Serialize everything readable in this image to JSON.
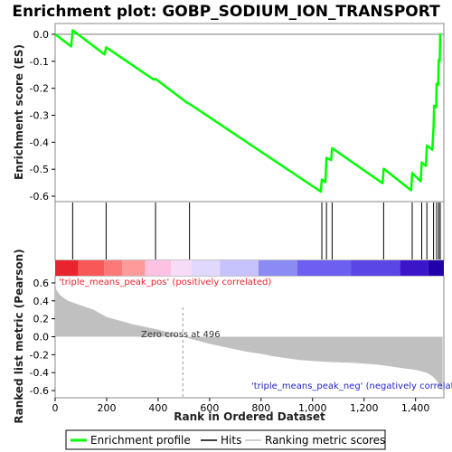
{
  "chart_data": {
    "type": "line",
    "title": "Enrichment plot: GOBP_SODIUM_ION_TRANSPORT",
    "x_label": "Rank in Ordered Dataset",
    "x_ticks": [
      "0",
      "200",
      "400",
      "600",
      "800",
      "1,000",
      "1,200",
      "1,400"
    ],
    "x_range": [
      0,
      1510
    ],
    "panels": {
      "enrichment": {
        "ylabel": "Enrichment score (ES)",
        "ylim": [
          -0.62,
          0.04
        ],
        "y_ticks": [
          "0.0",
          "-0.1",
          "-0.2",
          "-0.3",
          "-0.4",
          "-0.5",
          "-0.6"
        ],
        "series_name": "Enrichment profile",
        "color": "#00ff00",
        "points": [
          [
            0,
            0.0
          ],
          [
            62,
            -0.045
          ],
          [
            68,
            0.015
          ],
          [
            192,
            -0.075
          ],
          [
            198,
            -0.048
          ],
          [
            383,
            -0.168
          ],
          [
            390,
            -0.165
          ],
          [
            512,
            -0.253
          ],
          [
            522,
            -0.258
          ],
          [
            1032,
            -0.583
          ],
          [
            1036,
            -0.538
          ],
          [
            1050,
            -0.548
          ],
          [
            1054,
            -0.458
          ],
          [
            1072,
            -0.466
          ],
          [
            1076,
            -0.422
          ],
          [
            1272,
            -0.552
          ],
          [
            1276,
            -0.498
          ],
          [
            1383,
            -0.578
          ],
          [
            1387,
            -0.514
          ],
          [
            1420,
            -0.545
          ],
          [
            1424,
            -0.475
          ],
          [
            1440,
            -0.488
          ],
          [
            1444,
            -0.412
          ],
          [
            1465,
            -0.428
          ],
          [
            1470,
            -0.345
          ],
          [
            1472,
            -0.265
          ],
          [
            1480,
            -0.27
          ],
          [
            1482,
            -0.183
          ],
          [
            1488,
            -0.188
          ],
          [
            1490,
            -0.095
          ],
          [
            1494,
            -0.1
          ],
          [
            1496,
            0.003
          ]
        ]
      },
      "hits": {
        "label": "Hits",
        "positions": [
          68,
          198,
          390,
          522,
          1036,
          1054,
          1076,
          1276,
          1387,
          1424,
          1444,
          1470,
          1482,
          1490,
          1496
        ]
      },
      "heatmap": {
        "segments": [
          {
            "start": 0,
            "end": 90,
            "color": "#e8242e"
          },
          {
            "start": 90,
            "end": 190,
            "color": "#f95858"
          },
          {
            "start": 190,
            "end": 260,
            "color": "#fd7878"
          },
          {
            "start": 260,
            "end": 350,
            "color": "#fd9a9a"
          },
          {
            "start": 350,
            "end": 450,
            "color": "#fdc1e2"
          },
          {
            "start": 450,
            "end": 530,
            "color": "#f6dcf6"
          },
          {
            "start": 530,
            "end": 640,
            "color": "#e0d8fd"
          },
          {
            "start": 640,
            "end": 790,
            "color": "#c6c2fb"
          },
          {
            "start": 790,
            "end": 940,
            "color": "#8c8af3"
          },
          {
            "start": 940,
            "end": 1150,
            "color": "#6d5ff0"
          },
          {
            "start": 1150,
            "end": 1340,
            "color": "#5a45e6"
          },
          {
            "start": 1340,
            "end": 1450,
            "color": "#3a16c8"
          },
          {
            "start": 1450,
            "end": 1510,
            "color": "#2200a8"
          }
        ]
      },
      "metric": {
        "ylabel": "Ranked list metric (Pearson)",
        "ylim": [
          -0.68,
          0.68
        ],
        "y_ticks": [
          "0.6",
          "0.4",
          "0.2",
          "0.0",
          "-0.2",
          "-0.4",
          "-0.6"
        ],
        "series_name": "Ranking metric scores",
        "color": "#c0c0c0",
        "points": [
          [
            0,
            0.6
          ],
          [
            5,
            0.52
          ],
          [
            20,
            0.46
          ],
          [
            50,
            0.4
          ],
          [
            100,
            0.35
          ],
          [
            150,
            0.3
          ],
          [
            200,
            0.22
          ],
          [
            250,
            0.18
          ],
          [
            300,
            0.14
          ],
          [
            350,
            0.11
          ],
          [
            400,
            0.08
          ],
          [
            450,
            0.04
          ],
          [
            496,
            0.0
          ],
          [
            550,
            -0.04
          ],
          [
            600,
            -0.08
          ],
          [
            650,
            -0.11
          ],
          [
            700,
            -0.14
          ],
          [
            750,
            -0.17
          ],
          [
            800,
            -0.19
          ],
          [
            850,
            -0.22
          ],
          [
            900,
            -0.24
          ],
          [
            950,
            -0.26
          ],
          [
            1000,
            -0.27
          ],
          [
            1050,
            -0.28
          ],
          [
            1100,
            -0.285
          ],
          [
            1150,
            -0.29
          ],
          [
            1200,
            -0.3
          ],
          [
            1250,
            -0.31
          ],
          [
            1300,
            -0.33
          ],
          [
            1350,
            -0.35
          ],
          [
            1400,
            -0.37
          ],
          [
            1430,
            -0.39
          ],
          [
            1450,
            -0.41
          ],
          [
            1470,
            -0.45
          ],
          [
            1485,
            -0.5
          ],
          [
            1495,
            -0.56
          ],
          [
            1505,
            -0.6
          ]
        ],
        "zero_cross_label": "Zero cross at 496",
        "pos_label": "'triple_means_peak_pos' (positively correlated)",
        "neg_label": "'triple_means_peak_neg' (negatively correlated)",
        "pos_color": "#e8242e",
        "neg_color": "#2424c8"
      }
    },
    "legend": {
      "entries": [
        {
          "label": "Enrichment profile",
          "color": "#00ff00"
        },
        {
          "label": "Hits",
          "color": "#000000"
        },
        {
          "label": "Ranking metric scores",
          "color": "#c0c0c0"
        }
      ],
      "placement": "bottom"
    }
  }
}
